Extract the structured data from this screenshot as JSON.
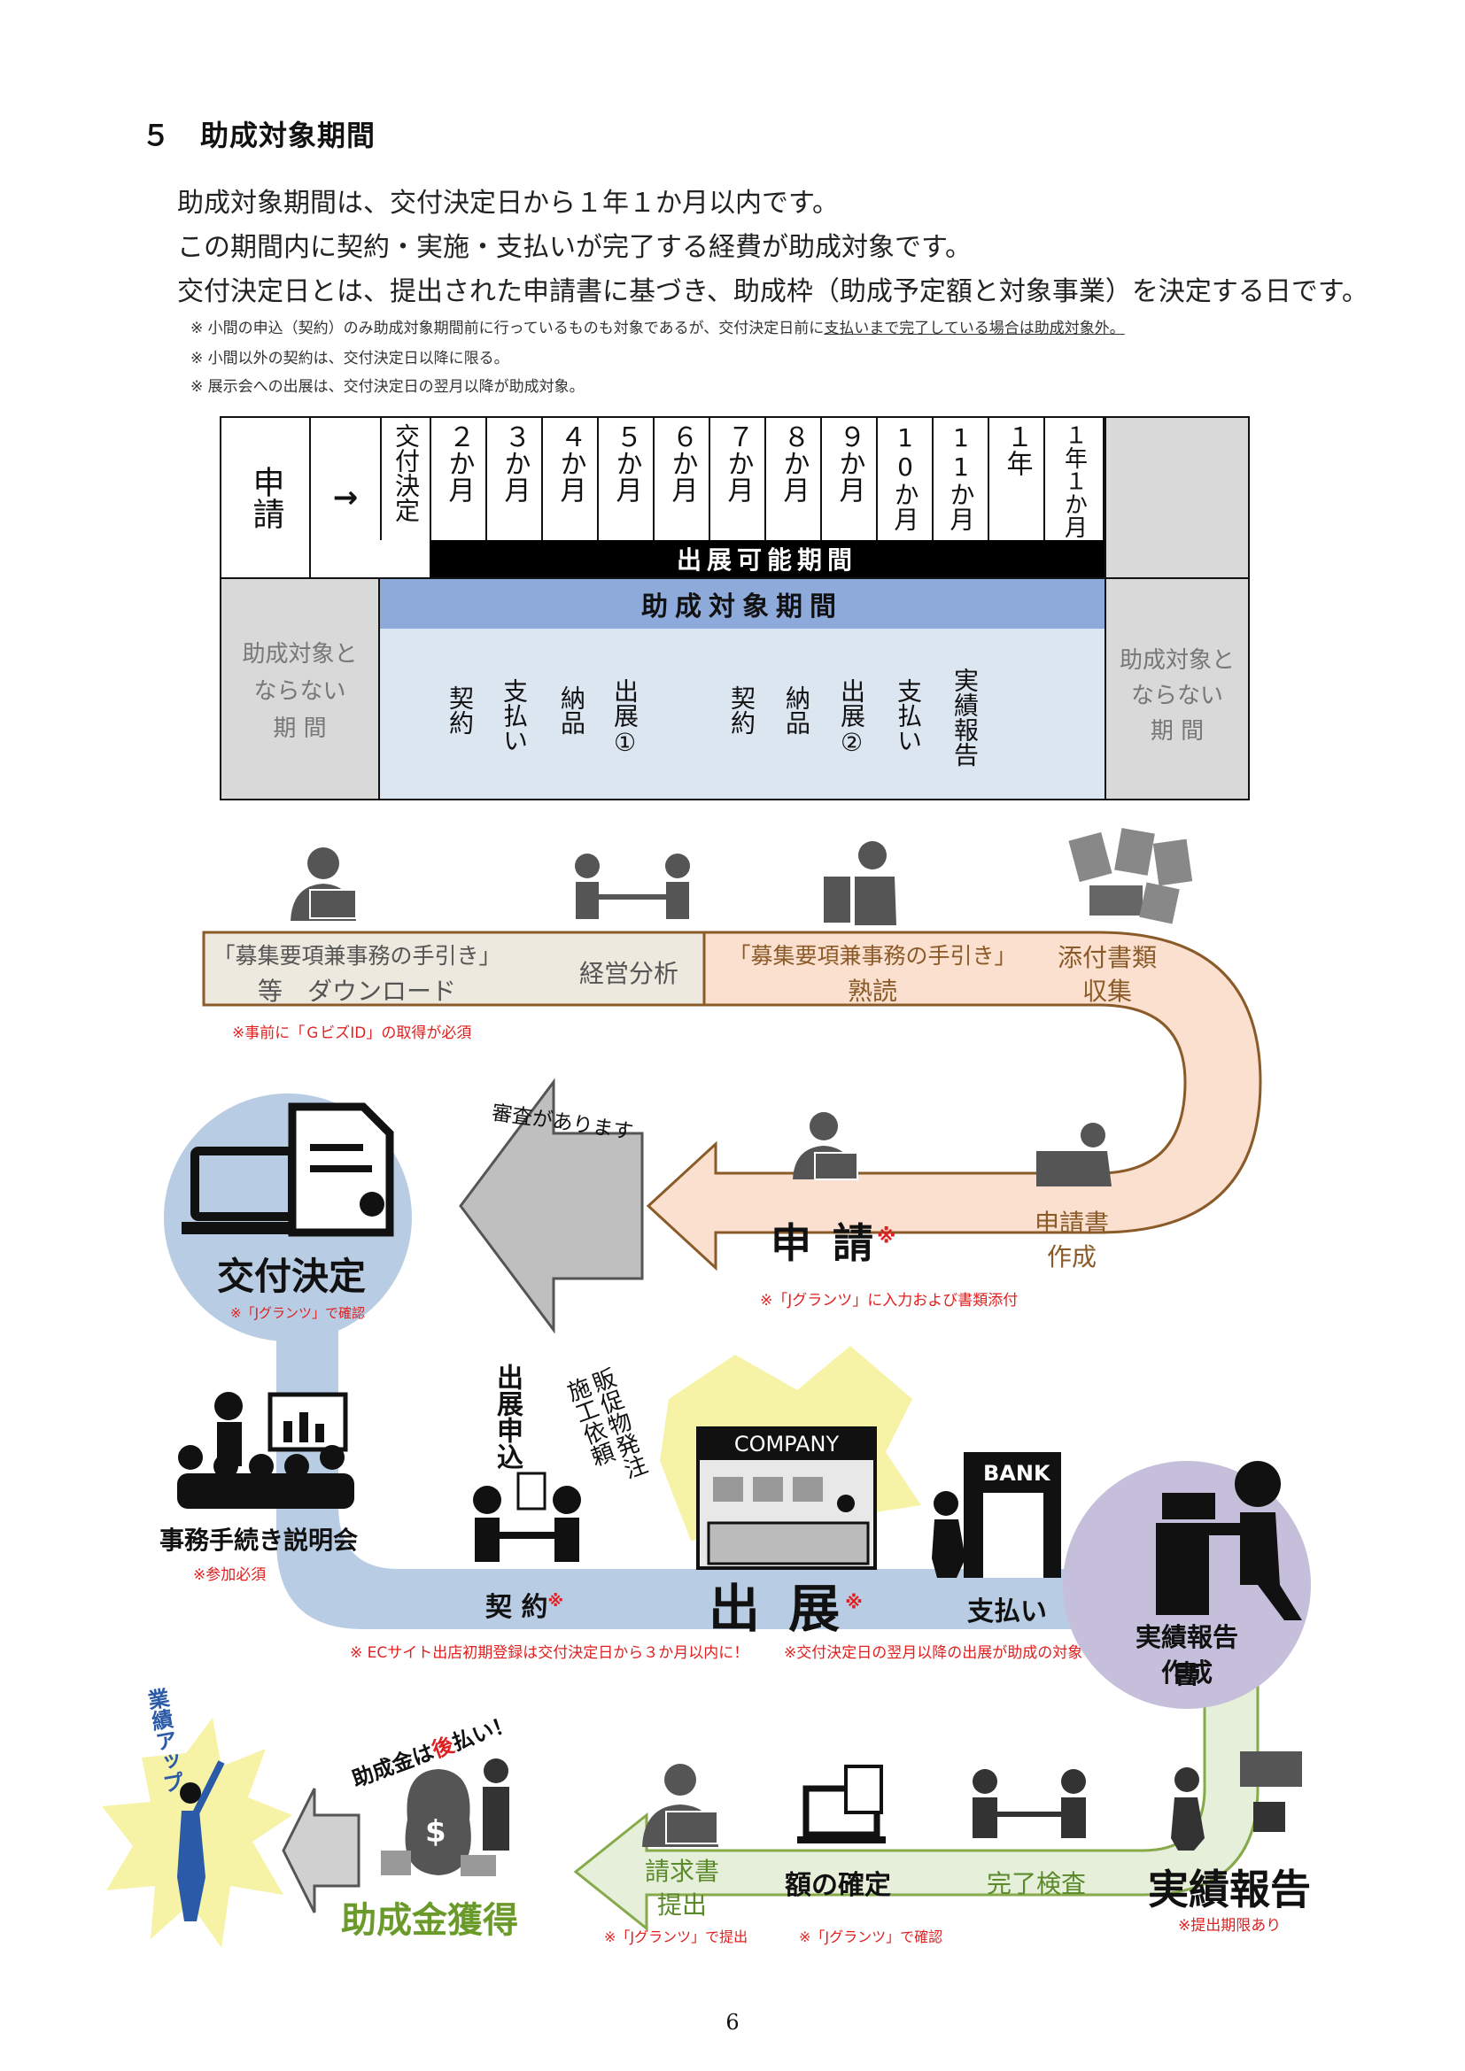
{
  "heading": "５　助成対象期間",
  "paragraphs": [
    "助成対象期間は、交付決定日から１年１か月以内です。",
    "この期間内に契約・実施・支払いが完了する経費が助成対象です。",
    "交付決定日とは、提出された申請書に基づき、助成枠（助成予定額と対象事業）を決定する日です。"
  ],
  "notes": {
    "n1_a": "※ 小間の申込（契約）のみ助成対象期間前に行っているものも対象であるが、交付決定日前に",
    "n1_b": "支払いまで完了している場合は助成対象外。",
    "n2": "※ 小間以外の契約は、交付決定日以降に限る。",
    "n3": "※ 展示会への出展は、交付決定日の翌月以降が助成対象。"
  },
  "period_table": {
    "apply": "申請",
    "arrow": "→",
    "months": [
      "交付決定",
      "２か月",
      "３か月",
      "４か月",
      "５か月",
      "６か月",
      "７か月",
      "８か月",
      "９か月",
      "10か月",
      "11か月",
      "１年",
      "１年１か月"
    ],
    "exhibit_period": "出展可能期間",
    "subsidy_period": "助成対象期間",
    "non_target_left": [
      "助成対象と",
      "ならない",
      "期 間"
    ],
    "non_target_right": [
      "助成対象と",
      "ならない",
      "期 間"
    ],
    "events": [
      "契約",
      "支払い",
      "納品",
      "出展①",
      "契約",
      "納品",
      "出展②",
      "支払い",
      "実績報告"
    ]
  },
  "flow": {
    "download_a": "「募集要項兼事務の手引き」",
    "download_b": "等　ダウンロード",
    "analysis": "経営分析",
    "read_a": "「募集要項兼事務の手引き」",
    "read_b": "熟読",
    "docs_a": "添付書類",
    "docs_b": "収集",
    "gbiz_note": "※事前に「ＧビズID」の取得が必須",
    "review": "審査があります",
    "apply": "申 請",
    "asterisk": "※",
    "create_a": "申請書",
    "create_b": "作成",
    "jgrants_input": "※「Jグランツ」に入力および書類添付",
    "decision": "交付決定",
    "decision_note": "※「Jグランツ」で確認",
    "briefing": "事務手続き説明会",
    "briefing_note": "※参加必須",
    "entry": "出展申込",
    "promo": "販促物発注施工依頼",
    "company": "COMPANY",
    "bank": "BANK",
    "contract": "契 約",
    "exhibit": "出 展",
    "payment": "支払い",
    "ec_note": "※ ECサイト出店初期登録は交付決定日から３か月以内に！",
    "exhibit_note": "※交付決定日の翌月以降の出展が助成の対象",
    "report_create_a": "実績報告書",
    "report_create_b": "作成",
    "performance": "業績アップ",
    "postpay_a": "助成金は",
    "postpay_b": "後",
    "postpay_c": "払い！",
    "grant": "助成金獲得",
    "invoice_a": "請求書",
    "invoice_b": "提出",
    "invoice_note": "※「Jグランツ」で提出",
    "finalize": "額の確定",
    "finalize_note": "※「Jグランツ」で確認",
    "inspection": "完了検査",
    "report": "実績報告",
    "report_note": "※提出期限あり"
  },
  "page_number": "6",
  "colors": {
    "band_beige": "#ede9df",
    "band_peach": "#fbe0cf",
    "band_brown": "#8a5a28",
    "band_blue": "#b8cce4",
    "band_green": "#e6efd9",
    "band_green_border": "#86a94a",
    "circle_purple": "#c6bfdb",
    "table_blue": "#dce6f1",
    "table_header_blue": "#8eaadb",
    "table_gray": "#d9d9d9",
    "note_red": "#e02020",
    "grant_green": "#6a9a2a"
  }
}
